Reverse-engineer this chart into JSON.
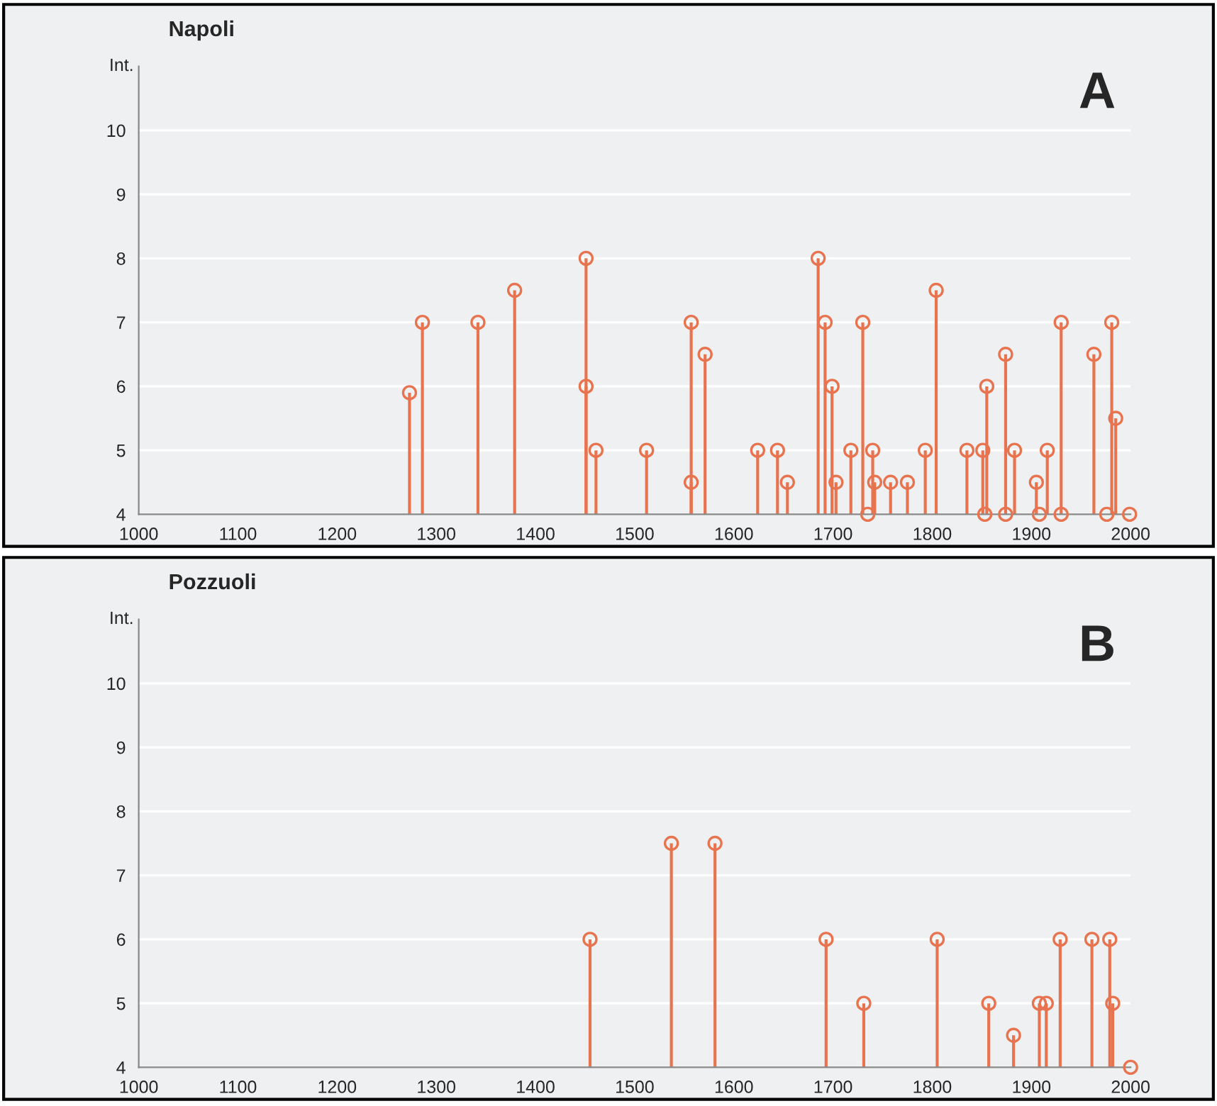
{
  "chart_data": [
    {
      "type": "lollipop",
      "title": "Napoli",
      "ylabel": "Int.",
      "annotations": [
        "A"
      ],
      "marker": "circle",
      "grid": "y",
      "xlim": [
        1000,
        2000
      ],
      "xticks": [
        1000,
        1100,
        1200,
        1300,
        1400,
        1500,
        1600,
        1700,
        1800,
        1900,
        2000
      ],
      "ylim": [
        4,
        11
      ],
      "yticks": [
        4,
        5,
        6,
        7,
        8,
        9,
        10
      ],
      "series": [
        {
          "color": "#e8734f",
          "x": [
            1273,
            1286,
            1342,
            1379,
            1451,
            1451,
            1461,
            1512,
            1557,
            1557,
            1571,
            1624,
            1644,
            1654,
            1685,
            1692,
            1699,
            1703,
            1718,
            1730,
            1735,
            1740,
            1742,
            1758,
            1775,
            1793,
            1804,
            1835,
            1851,
            1853,
            1855,
            1874,
            1874,
            1883,
            1905,
            1908,
            1916,
            1930,
            1930,
            1963,
            1976,
            1981,
            1985,
            1999
          ],
          "values": [
            5.9,
            7,
            7,
            7.5,
            8,
            6,
            5,
            5,
            7,
            4.5,
            6.5,
            5,
            5,
            4.5,
            8,
            7,
            6,
            4.5,
            5,
            7,
            4,
            5,
            4.5,
            4.5,
            4.5,
            5,
            7.5,
            5,
            5,
            4,
            6,
            6.5,
            4,
            5,
            4.5,
            4,
            5,
            7,
            4,
            6.5,
            4,
            7,
            5.5,
            4
          ]
        }
      ]
    },
    {
      "type": "lollipop",
      "title": "Pozzuoli",
      "ylabel": "Int.",
      "annotations": [
        "B"
      ],
      "marker": "circle",
      "grid": "y",
      "xlim": [
        1000,
        2000
      ],
      "xticks": [
        1000,
        1100,
        1200,
        1300,
        1400,
        1500,
        1600,
        1700,
        1800,
        1900,
        2000
      ],
      "ylim": [
        4,
        11
      ],
      "yticks": [
        4,
        5,
        6,
        7,
        8,
        9,
        10
      ],
      "series": [
        {
          "color": "#e8734f",
          "x": [
            1455,
            1537,
            1581,
            1693,
            1731,
            1805,
            1857,
            1882,
            1908,
            1915,
            1929,
            1961,
            1979,
            1982,
            2000
          ],
          "values": [
            6,
            7.5,
            7.5,
            6,
            5,
            6,
            5,
            4.5,
            5,
            5,
            6,
            6,
            6,
            5,
            4
          ]
        }
      ]
    }
  ]
}
